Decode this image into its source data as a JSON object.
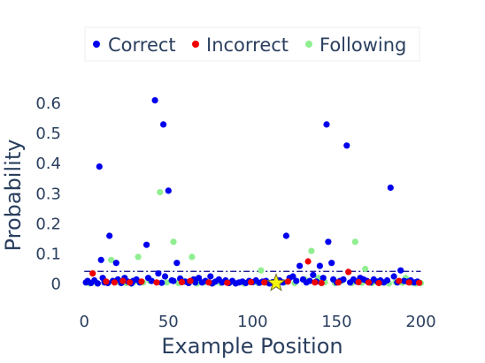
{
  "chart_data": {
    "type": "scatter",
    "xlabel": "Example Position",
    "ylabel": "Probability",
    "xlim": [
      -8,
      205
    ],
    "ylim": [
      -0.06,
      0.65
    ],
    "xticks": [
      0,
      50,
      100,
      150,
      200
    ],
    "yticks": [
      0,
      0.1,
      0.2,
      0.3,
      0.4,
      0.5,
      0.6
    ],
    "ytick_labels": [
      "0",
      "0.1",
      "0.2",
      "0.3",
      "0.4",
      "0.5",
      "0.6"
    ],
    "grid": false,
    "legend_position": "top",
    "threshold_line": {
      "y": 0.042,
      "style": "dash-dot",
      "color": "#00008b"
    },
    "marker_star": {
      "x": 114,
      "y": 0.003,
      "color": "#f5f50a"
    },
    "series": [
      {
        "name": "Correct",
        "color": "#0000ee",
        "points": [
          [
            1,
            0.005
          ],
          [
            2,
            0.01
          ],
          [
            4,
            0.003
          ],
          [
            6,
            0.012
          ],
          [
            8,
            0.002
          ],
          [
            9,
            0.39
          ],
          [
            10,
            0.08
          ],
          [
            11,
            0.02
          ],
          [
            12,
            0.005
          ],
          [
            14,
            0.003
          ],
          [
            15,
            0.16
          ],
          [
            17,
            0.01
          ],
          [
            19,
            0.07
          ],
          [
            20,
            0.015
          ],
          [
            22,
            0.003
          ],
          [
            24,
            0.02
          ],
          [
            26,
            0.008
          ],
          [
            28,
            0.002
          ],
          [
            29,
            0.01
          ],
          [
            31,
            0.015
          ],
          [
            33,
            0.005
          ],
          [
            37,
            0.13
          ],
          [
            38,
            0.02
          ],
          [
            40,
            0.01
          ],
          [
            42,
            0.61
          ],
          [
            44,
            0.035
          ],
          [
            46,
            0.004
          ],
          [
            47,
            0.53
          ],
          [
            48,
            0.025
          ],
          [
            50,
            0.31
          ],
          [
            52,
            0.012
          ],
          [
            53,
            0.01
          ],
          [
            55,
            0.07
          ],
          [
            57,
            0.018
          ],
          [
            60,
            0.008
          ],
          [
            62,
            0.003
          ],
          [
            65,
            0.015
          ],
          [
            66,
            0.005
          ],
          [
            68,
            0.02
          ],
          [
            70,
            0.005
          ],
          [
            72,
            0.01
          ],
          [
            75,
            0.025
          ],
          [
            76,
            0.002
          ],
          [
            78,
            0.008
          ],
          [
            80,
            0.015
          ],
          [
            82,
            0.005
          ],
          [
            84,
            0.012
          ],
          [
            86,
            0.003
          ],
          [
            88,
            0.01
          ],
          [
            90,
            0.002
          ],
          [
            92,
            0.005
          ],
          [
            94,
            0.008
          ],
          [
            96,
            0.003
          ],
          [
            98,
            0.01
          ],
          [
            100,
            0.006
          ],
          [
            102,
            0.012
          ],
          [
            104,
            0.004
          ],
          [
            106,
            0.008
          ],
          [
            108,
            0.01
          ],
          [
            110,
            0.002
          ],
          [
            112,
            0.006
          ],
          [
            116,
            0.012
          ],
          [
            118,
            0.005
          ],
          [
            120,
            0.16
          ],
          [
            122,
            0.02
          ],
          [
            124,
            0.025
          ],
          [
            126,
            0.01
          ],
          [
            128,
            0.06
          ],
          [
            130,
            0.015
          ],
          [
            132,
            0.005
          ],
          [
            134,
            0.01
          ],
          [
            136,
            0.03
          ],
          [
            138,
            0.008
          ],
          [
            140,
            0.06
          ],
          [
            142,
            0.02
          ],
          [
            144,
            0.53
          ],
          [
            145,
            0.14
          ],
          [
            147,
            0.07
          ],
          [
            148,
            0.015
          ],
          [
            150,
            0.005
          ],
          [
            152,
            0.01
          ],
          [
            154,
            0.015
          ],
          [
            156,
            0.46
          ],
          [
            158,
            0.005
          ],
          [
            160,
            0.015
          ],
          [
            162,
            0.008
          ],
          [
            164,
            0.02
          ],
          [
            166,
            0.015
          ],
          [
            168,
            0.01
          ],
          [
            170,
            0.005
          ],
          [
            172,
            0.015
          ],
          [
            174,
            0.008
          ],
          [
            176,
            0.012
          ],
          [
            178,
            0.005
          ],
          [
            180,
            0.012
          ],
          [
            182,
            0.32
          ],
          [
            184,
            0.025
          ],
          [
            186,
            0.005
          ],
          [
            188,
            0.045
          ],
          [
            190,
            0.01
          ],
          [
            192,
            0.008
          ],
          [
            194,
            0.012
          ],
          [
            196,
            0.005
          ],
          [
            198,
            0.008
          ]
        ]
      },
      {
        "name": "Incorrect",
        "color": "#ee0000",
        "points": [
          [
            5,
            0.035
          ],
          [
            13,
            0.008
          ],
          [
            18,
            0.005
          ],
          [
            23,
            0.01
          ],
          [
            27,
            0.005
          ],
          [
            34,
            0.008
          ],
          [
            43,
            0.005
          ],
          [
            58,
            0.006
          ],
          [
            63,
            0.01
          ],
          [
            74,
            0.005
          ],
          [
            85,
            0.004
          ],
          [
            99,
            0.006
          ],
          [
            107,
            0.005
          ],
          [
            121,
            0.008
          ],
          [
            133,
            0.075
          ],
          [
            137,
            0.005
          ],
          [
            141,
            0.003
          ],
          [
            151,
            0.005
          ],
          [
            157,
            0.04
          ],
          [
            163,
            0.006
          ],
          [
            169,
            0.005
          ],
          [
            175,
            0.003
          ],
          [
            187,
            0.01
          ],
          [
            193,
            0.005
          ],
          [
            199,
            0.004
          ]
        ]
      },
      {
        "name": "Following",
        "color": "#90ee90",
        "points": [
          [
            3,
            0.002
          ],
          [
            7,
            0.005
          ],
          [
            16,
            0.08
          ],
          [
            21,
            0.005
          ],
          [
            25,
            0.003
          ],
          [
            30,
            0.008
          ],
          [
            32,
            0.09
          ],
          [
            35,
            0.005
          ],
          [
            39,
            0.01
          ],
          [
            45,
            0.305
          ],
          [
            49,
            0.005
          ],
          [
            53,
            0.14
          ],
          [
            56,
            0.003
          ],
          [
            59,
            0.01
          ],
          [
            64,
            0.09
          ],
          [
            67,
            0.002
          ],
          [
            71,
            0.005
          ],
          [
            77,
            0.004
          ],
          [
            81,
            0.003
          ],
          [
            87,
            0.006
          ],
          [
            95,
            0.002
          ],
          [
            103,
            0.004
          ],
          [
            105,
            0.045
          ],
          [
            109,
            0.003
          ],
          [
            115,
            0.004
          ],
          [
            119,
            0.005
          ],
          [
            125,
            0.003
          ],
          [
            131,
            0.015
          ],
          [
            135,
            0.11
          ],
          [
            139,
            0.02
          ],
          [
            143,
            0.006
          ],
          [
            149,
            0.003
          ],
          [
            153,
            0.01
          ],
          [
            159,
            0.003
          ],
          [
            161,
            0.14
          ],
          [
            165,
            0.004
          ],
          [
            167,
            0.05
          ],
          [
            171,
            0.003
          ],
          [
            177,
            0.005
          ],
          [
            181,
            0.002
          ],
          [
            185,
            0.006
          ],
          [
            189,
            0.004
          ],
          [
            191,
            0.02
          ],
          [
            195,
            0.004
          ],
          [
            197,
            0.002
          ],
          [
            200,
            0.003
          ]
        ]
      }
    ]
  }
}
